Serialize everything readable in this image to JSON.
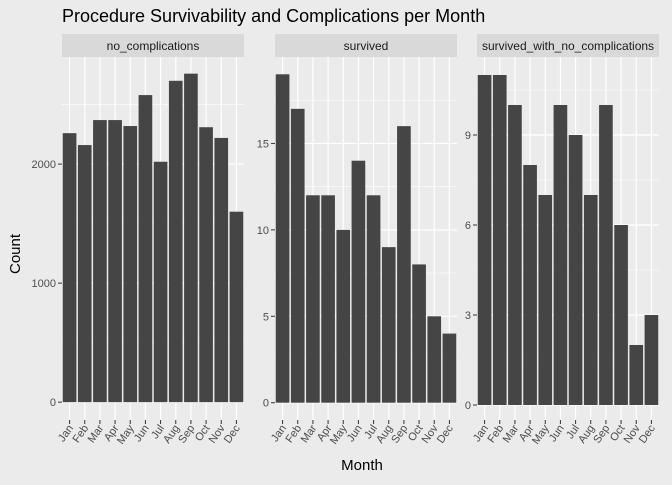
{
  "chart_data": {
    "type": "bar",
    "title": "Procedure Survivability and Complications per Month",
    "xlabel": "Month",
    "ylabel": "Count",
    "categories": [
      "Jan",
      "Feb",
      "Mar",
      "Apr",
      "May",
      "Jun",
      "Jul",
      "Aug",
      "Sep",
      "Oct",
      "Nov",
      "Dec"
    ],
    "facets": [
      {
        "strip": "no_complications",
        "values": [
          2260,
          2160,
          2370,
          2370,
          2320,
          2580,
          2020,
          2700,
          2760,
          2310,
          2220,
          1600
        ],
        "ylim": [
          -150,
          2900
        ],
        "yticks": [
          0,
          1000,
          2000
        ],
        "yticklabels": [
          "0",
          "1000",
          "2000"
        ]
      },
      {
        "strip": "survived",
        "values": [
          19,
          17,
          12,
          12,
          10,
          14,
          12,
          9,
          16,
          8,
          5,
          4
        ],
        "ylim": [
          -1,
          20
        ],
        "yticks": [
          0,
          5,
          10,
          15
        ],
        "yticklabels": [
          "0",
          "5",
          "10",
          "15"
        ]
      },
      {
        "strip": "survived_with_no_complications",
        "values": [
          11,
          11,
          10,
          8,
          7,
          10,
          9,
          7,
          10,
          6,
          2,
          3
        ],
        "ylim": [
          -0.5,
          11.6
        ],
        "yticks": [
          0,
          3,
          6,
          9
        ],
        "yticklabels": [
          "0",
          "3",
          "6",
          "9"
        ]
      }
    ],
    "grid": true,
    "colors": {
      "bar": "#454545",
      "panel": "#ebebeb",
      "strip": "#d9d9d9",
      "grid": "#ffffff",
      "text": "#1a1a1a",
      "tick_text": "#4d4d4d"
    }
  }
}
